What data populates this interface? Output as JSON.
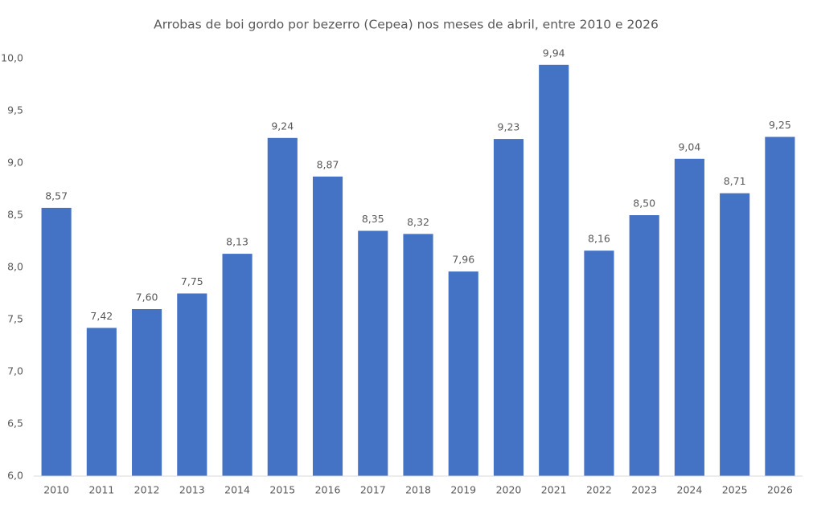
{
  "chart_data": {
    "type": "bar",
    "title": "Arrobas de boi gordo por bezerro (Cepea) nos meses de abril, entre 2010 e 2026",
    "categories": [
      "2010",
      "2011",
      "2012",
      "2013",
      "2014",
      "2015",
      "2016",
      "2017",
      "2018",
      "2019",
      "2020",
      "2021",
      "2022",
      "2023",
      "2024",
      "2025",
      "2026"
    ],
    "values": [
      8.57,
      7.42,
      7.6,
      7.75,
      8.13,
      9.24,
      8.87,
      8.35,
      8.32,
      7.96,
      9.23,
      9.94,
      8.16,
      8.5,
      9.04,
      8.71,
      9.25
    ],
    "value_labels": [
      "8,57",
      "7,42",
      "7,60",
      "7,75",
      "8,13",
      "9,24",
      "8,87",
      "8,35",
      "8,32",
      "7,96",
      "9,23",
      "9,94",
      "8,16",
      "8,50",
      "9,04",
      "8,71",
      "9,25"
    ],
    "color": "#4472c4",
    "ylim": [
      6.0,
      10.0
    ],
    "yticks": [
      {
        "value": 6.0,
        "label": "6,0"
      },
      {
        "value": 6.5,
        "label": "6,5"
      },
      {
        "value": 7.0,
        "label": "7,0"
      },
      {
        "value": 7.5,
        "label": "7,5"
      },
      {
        "value": 8.0,
        "label": "8,0"
      },
      {
        "value": 8.5,
        "label": "8,5"
      },
      {
        "value": 9.0,
        "label": "9,0"
      },
      {
        "value": 9.5,
        "label": "9,5"
      },
      {
        "value": 10.0,
        "label": "10,0"
      }
    ],
    "grid": false
  }
}
